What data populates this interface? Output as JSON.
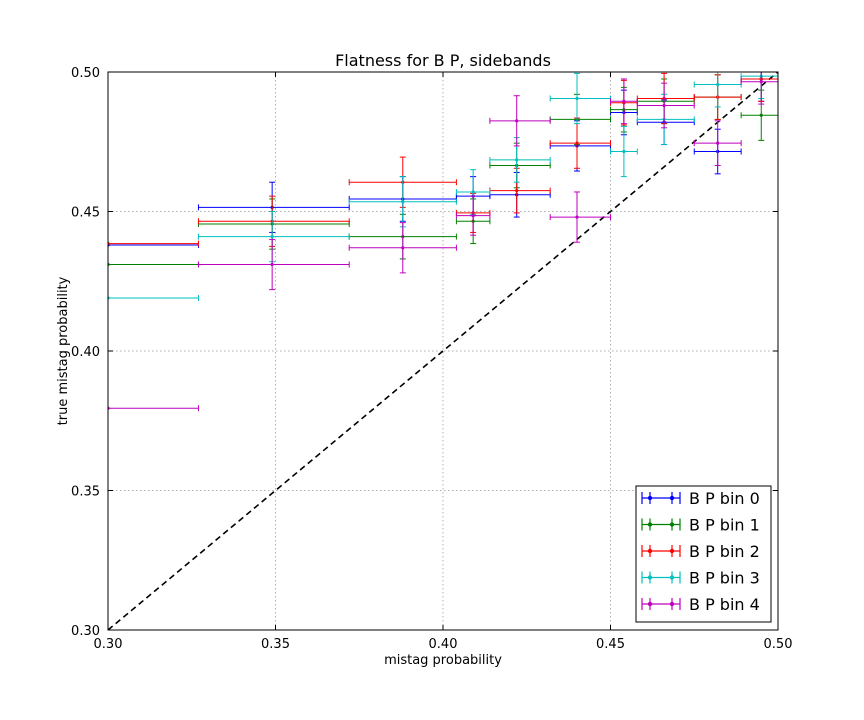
{
  "chart_data": {
    "type": "scatter",
    "title": "Flatness for B P, sidebands",
    "xlabel": "mistag probability",
    "ylabel": "true mistag probability",
    "xlim": [
      0.3,
      0.5
    ],
    "ylim": [
      0.3,
      0.5
    ],
    "x_ticks": [
      "0.30",
      "0.35",
      "0.40",
      "0.45",
      "0.50"
    ],
    "y_ticks": [
      "0.30",
      "0.35",
      "0.40",
      "0.45",
      "0.50"
    ],
    "grid": true,
    "legend_position": "bottom-right",
    "diagonal_reference": {
      "style": "dashed",
      "color": "#000000",
      "from": [
        0.3,
        0.3
      ],
      "to": [
        0.5,
        0.5
      ]
    },
    "series": [
      {
        "name": "B P bin 0",
        "color": "#0000ff",
        "points": [
          {
            "x": 0.3,
            "xlo": 0.3,
            "xhi": 0.327,
            "y": 0.438,
            "yerr": 0.0
          },
          {
            "x": 0.349,
            "xlo": 0.327,
            "xhi": 0.372,
            "y": 0.4515,
            "yerr": 0.009
          },
          {
            "x": 0.388,
            "xlo": 0.372,
            "xhi": 0.404,
            "y": 0.4545,
            "yerr": 0.008
          },
          {
            "x": 0.409,
            "xlo": 0.404,
            "xhi": 0.414,
            "y": 0.4555,
            "yerr": 0.007
          },
          {
            "x": 0.422,
            "xlo": 0.414,
            "xhi": 0.432,
            "y": 0.456,
            "yerr": 0.008
          },
          {
            "x": 0.44,
            "xlo": 0.432,
            "xhi": 0.45,
            "y": 0.4735,
            "yerr": 0.009
          },
          {
            "x": 0.454,
            "xlo": 0.45,
            "xhi": 0.458,
            "y": 0.4855,
            "yerr": 0.008
          },
          {
            "x": 0.466,
            "xlo": 0.458,
            "xhi": 0.475,
            "y": 0.482,
            "yerr": 0.008
          },
          {
            "x": 0.482,
            "xlo": 0.475,
            "xhi": 0.489,
            "y": 0.4715,
            "yerr": 0.008
          },
          {
            "x": 0.495,
            "xlo": 0.489,
            "xhi": 0.5,
            "y": 0.4975,
            "yerr": 0.008
          }
        ]
      },
      {
        "name": "B P bin 1",
        "color": "#008000",
        "points": [
          {
            "x": 0.3,
            "xlo": 0.3,
            "xhi": 0.327,
            "y": 0.431,
            "yerr": 0.0
          },
          {
            "x": 0.349,
            "xlo": 0.327,
            "xhi": 0.372,
            "y": 0.4455,
            "yerr": 0.009
          },
          {
            "x": 0.388,
            "xlo": 0.372,
            "xhi": 0.404,
            "y": 0.441,
            "yerr": 0.008
          },
          {
            "x": 0.409,
            "xlo": 0.404,
            "xhi": 0.414,
            "y": 0.4465,
            "yerr": 0.008
          },
          {
            "x": 0.422,
            "xlo": 0.414,
            "xhi": 0.432,
            "y": 0.4665,
            "yerr": 0.008
          },
          {
            "x": 0.44,
            "xlo": 0.432,
            "xhi": 0.45,
            "y": 0.483,
            "yerr": 0.009
          },
          {
            "x": 0.454,
            "xlo": 0.45,
            "xhi": 0.458,
            "y": 0.4865,
            "yerr": 0.008
          },
          {
            "x": 0.466,
            "xlo": 0.458,
            "xhi": 0.475,
            "y": 0.4895,
            "yerr": 0.008
          },
          {
            "x": 0.482,
            "xlo": 0.475,
            "xhi": 0.489,
            "y": 0.491,
            "yerr": 0.008
          },
          {
            "x": 0.495,
            "xlo": 0.489,
            "xhi": 0.5,
            "y": 0.4845,
            "yerr": 0.009
          }
        ]
      },
      {
        "name": "B P bin 2",
        "color": "#ff0000",
        "points": [
          {
            "x": 0.3,
            "xlo": 0.3,
            "xhi": 0.327,
            "y": 0.4385,
            "yerr": 0.0
          },
          {
            "x": 0.349,
            "xlo": 0.327,
            "xhi": 0.372,
            "y": 0.4465,
            "yerr": 0.009
          },
          {
            "x": 0.388,
            "xlo": 0.372,
            "xhi": 0.404,
            "y": 0.4605,
            "yerr": 0.009
          },
          {
            "x": 0.409,
            "xlo": 0.404,
            "xhi": 0.414,
            "y": 0.4495,
            "yerr": 0.007
          },
          {
            "x": 0.422,
            "xlo": 0.414,
            "xhi": 0.432,
            "y": 0.4575,
            "yerr": 0.008
          },
          {
            "x": 0.44,
            "xlo": 0.432,
            "xhi": 0.45,
            "y": 0.4745,
            "yerr": 0.009
          },
          {
            "x": 0.454,
            "xlo": 0.45,
            "xhi": 0.458,
            "y": 0.489,
            "yerr": 0.008
          },
          {
            "x": 0.466,
            "xlo": 0.458,
            "xhi": 0.475,
            "y": 0.4905,
            "yerr": 0.009
          },
          {
            "x": 0.482,
            "xlo": 0.475,
            "xhi": 0.489,
            "y": 0.491,
            "yerr": 0.008
          },
          {
            "x": 0.495,
            "xlo": 0.489,
            "xhi": 0.5,
            "y": 0.4975,
            "yerr": 0.008
          }
        ]
      },
      {
        "name": "B P bin 3",
        "color": "#00bfbf",
        "points": [
          {
            "x": 0.3,
            "xlo": 0.3,
            "xhi": 0.327,
            "y": 0.419,
            "yerr": 0.0
          },
          {
            "x": 0.349,
            "xlo": 0.327,
            "xhi": 0.372,
            "y": 0.441,
            "yerr": 0.009
          },
          {
            "x": 0.388,
            "xlo": 0.372,
            "xhi": 0.404,
            "y": 0.4535,
            "yerr": 0.009
          },
          {
            "x": 0.409,
            "xlo": 0.404,
            "xhi": 0.414,
            "y": 0.457,
            "yerr": 0.008
          },
          {
            "x": 0.422,
            "xlo": 0.414,
            "xhi": 0.432,
            "y": 0.4685,
            "yerr": 0.008
          },
          {
            "x": 0.44,
            "xlo": 0.432,
            "xhi": 0.45,
            "y": 0.4905,
            "yerr": 0.009
          },
          {
            "x": 0.454,
            "xlo": 0.45,
            "xhi": 0.458,
            "y": 0.4715,
            "yerr": 0.009
          },
          {
            "x": 0.466,
            "xlo": 0.458,
            "xhi": 0.475,
            "y": 0.483,
            "yerr": 0.009
          },
          {
            "x": 0.482,
            "xlo": 0.475,
            "xhi": 0.489,
            "y": 0.4955,
            "yerr": 0.008
          },
          {
            "x": 0.495,
            "xlo": 0.489,
            "xhi": 0.5,
            "y": 0.4985,
            "yerr": 0.008
          }
        ]
      },
      {
        "name": "B P bin 4",
        "color": "#bf00bf",
        "points": [
          {
            "x": 0.3,
            "xlo": 0.3,
            "xhi": 0.327,
            "y": 0.3795,
            "yerr": 0.0
          },
          {
            "x": 0.349,
            "xlo": 0.327,
            "xhi": 0.372,
            "y": 0.431,
            "yerr": 0.009
          },
          {
            "x": 0.388,
            "xlo": 0.372,
            "xhi": 0.404,
            "y": 0.437,
            "yerr": 0.009
          },
          {
            "x": 0.409,
            "xlo": 0.404,
            "xhi": 0.414,
            "y": 0.4485,
            "yerr": 0.007
          },
          {
            "x": 0.422,
            "xlo": 0.414,
            "xhi": 0.432,
            "y": 0.4825,
            "yerr": 0.009
          },
          {
            "x": 0.44,
            "xlo": 0.432,
            "xhi": 0.45,
            "y": 0.448,
            "yerr": 0.009
          },
          {
            "x": 0.454,
            "xlo": 0.45,
            "xhi": 0.458,
            "y": 0.4895,
            "yerr": 0.008
          },
          {
            "x": 0.466,
            "xlo": 0.458,
            "xhi": 0.475,
            "y": 0.488,
            "yerr": 0.008
          },
          {
            "x": 0.482,
            "xlo": 0.475,
            "xhi": 0.489,
            "y": 0.4745,
            "yerr": 0.008
          },
          {
            "x": 0.495,
            "xlo": 0.489,
            "xhi": 0.5,
            "y": 0.4965,
            "yerr": 0.008
          }
        ]
      }
    ]
  }
}
